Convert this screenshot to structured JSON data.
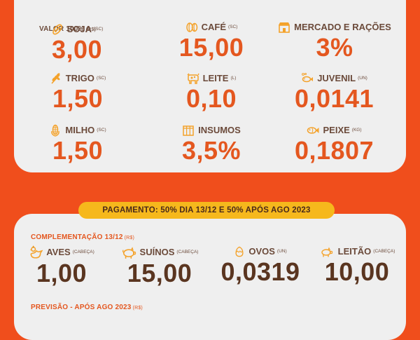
{
  "section1": {
    "title": "VALOR 100%",
    "title_unit": "(R$)",
    "items": [
      {
        "label": "SOJA",
        "unit": "(SC)",
        "value": "3,00",
        "icon": "soy-icon"
      },
      {
        "label": "CAFÉ",
        "unit": "(SC)",
        "value": "15,00",
        "icon": "coffee-icon"
      },
      {
        "label": "MERCADO E RAÇÕES",
        "unit": "",
        "value": "3%",
        "icon": "store-icon"
      },
      {
        "label": "TRIGO",
        "unit": "(SC)",
        "value": "1,50",
        "icon": "wheat-icon"
      },
      {
        "label": "LEITE",
        "unit": "(L)",
        "value": "0,10",
        "icon": "cow-icon"
      },
      {
        "label": "JUVENIL",
        "unit": "(UN)",
        "value": "0,0141",
        "icon": "small-fish-icon"
      },
      {
        "label": "MILHO",
        "unit": "(SC)",
        "value": "1,50",
        "icon": "corn-icon"
      },
      {
        "label": "INSUMOS",
        "unit": "",
        "value": "3,5%",
        "icon": "supplies-icon"
      },
      {
        "label": "PEIXE",
        "unit": "(KG)",
        "value": "0,1807",
        "icon": "fish-icon"
      }
    ]
  },
  "payment_banner": "PAGAMENTO: 50% DIA 13/12 E 50% APÓS AGO 2023",
  "section2": {
    "title": "COMPLEMENTAÇÃO 13/12",
    "title_unit": "(R$)",
    "items": [
      {
        "label": "AVES",
        "unit": "(CABEÇA)",
        "value": "1,00",
        "icon": "chicken-icon"
      },
      {
        "label": "SUÍNOS",
        "unit": "(CABEÇA)",
        "value": "15,00",
        "icon": "pig-icon"
      },
      {
        "label": "OVOS",
        "unit": "(UN)",
        "value": "0,0319",
        "icon": "egg-icon"
      },
      {
        "label": "LEITÃO",
        "unit": "(CABEÇA)",
        "value": "10,00",
        "icon": "piglet-icon"
      }
    ]
  },
  "section3": {
    "title": "PREVISÃO - APÓS AGO 2023",
    "title_unit": "(R$)"
  },
  "colors": {
    "background": "#f04e1c",
    "card": "#efefef",
    "accent_orange": "#e4571f",
    "brown": "#5a3520",
    "banner": "#f6b81c"
  }
}
